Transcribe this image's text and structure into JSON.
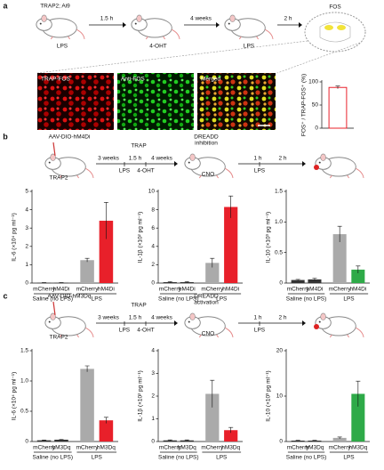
{
  "panel_a": {
    "label": "a",
    "genotype": "TRAP2; Ai9",
    "intervals": [
      "1.5 h",
      "4 weeks",
      "2 h"
    ],
    "treatments": [
      "LPS",
      "4-OHT",
      "LPS"
    ],
    "region": "FOS",
    "images": [
      "TRAP-FOS",
      "Anti-FOS",
      "Merged"
    ]
  },
  "panel_b": {
    "label": "b",
    "virus": "AAV-DIO-hM4Di",
    "mouse": "TRAP2",
    "trap": "TRAP",
    "intervals": [
      "3 weeks",
      "1.5 h",
      "4 weeks"
    ],
    "trap_treatments": [
      "LPS",
      "4-OHT"
    ],
    "dreadd": [
      "DREADD",
      "inhibition"
    ],
    "cno": "CNO",
    "post_intervals": [
      "1 h",
      "2 h"
    ],
    "post_treatment": "LPS"
  },
  "panel_c": {
    "label": "c",
    "virus": "AAV-DIO-hM3Dq",
    "mouse": "TRAP2",
    "trap": "TRAP",
    "intervals": [
      "3 weeks",
      "1.5 h",
      "4 weeks"
    ],
    "trap_treatments": [
      "LPS",
      "4-OHT"
    ],
    "dreadd": [
      "DREADD",
      "activation"
    ],
    "cno": "CNO",
    "post_intervals": [
      "1 h",
      "2 h"
    ],
    "post_treatment": "LPS"
  },
  "chart_data": [
    {
      "type": "bar",
      "ylabel": "FOS⁺ / TRAP-FOS⁺ (%)",
      "values": [
        88
      ],
      "errors": [
        3
      ],
      "colors": [
        "#ffffff"
      ],
      "edge": "#e8202a",
      "ylim": [
        0,
        100
      ],
      "yticks": [
        0,
        50,
        100
      ]
    },
    {
      "type": "bar",
      "ylabel": "IL-6 (×10⁴ pg ml⁻¹)",
      "categories": [
        "mCherry",
        "hM4Di",
        "mCherry",
        "hM4Di"
      ],
      "groups": [
        "Saline (no LPS)",
        "LPS"
      ],
      "values": [
        0.02,
        0.02,
        1.25,
        3.4
      ],
      "errors": [
        0.01,
        0.01,
        0.1,
        1.0
      ],
      "colors": [
        "#333333",
        "#333333",
        "#aaaaaa",
        "#e8202a"
      ],
      "ylim": [
        0,
        5
      ],
      "yticks": [
        0,
        1,
        2,
        3,
        4,
        5
      ]
    },
    {
      "type": "bar",
      "ylabel": "IL-1β (×10² pg ml⁻¹)",
      "categories": [
        "mCherry",
        "hM4Di",
        "mCherry",
        "hM4Di"
      ],
      "groups": [
        "Saline (no LPS)",
        "LPS"
      ],
      "values": [
        0.1,
        0.1,
        2.2,
        8.3
      ],
      "errors": [
        0.05,
        0.05,
        0.5,
        1.2
      ],
      "colors": [
        "#333333",
        "#333333",
        "#aaaaaa",
        "#e8202a"
      ],
      "ylim": [
        0,
        10
      ],
      "yticks": [
        0,
        2,
        4,
        6,
        8,
        10
      ]
    },
    {
      "type": "bar",
      "ylabel": "IL-10 (×10³ pg ml⁻¹)",
      "categories": [
        "mCherry",
        "hM4Di",
        "mCherry",
        "hM4Di"
      ],
      "groups": [
        "Saline (no LPS)",
        "LPS"
      ],
      "values": [
        0.05,
        0.06,
        0.8,
        0.22
      ],
      "errors": [
        0.01,
        0.02,
        0.13,
        0.06
      ],
      "colors": [
        "#333333",
        "#333333",
        "#aaaaaa",
        "#2eaa48"
      ],
      "ylim": [
        0,
        1.5
      ],
      "yticks": [
        0,
        0.5,
        {
          "value": 1,
          "label": "1.0"
        },
        1.5
      ]
    },
    {
      "type": "bar",
      "ylabel": "IL-6 (×10⁴ pg ml⁻¹)",
      "categories": [
        "mCherry",
        "hM3Dq",
        "mCherry",
        "hM3Dq"
      ],
      "groups": [
        "Saline (no LPS)",
        "LPS"
      ],
      "values": [
        0.02,
        0.03,
        1.2,
        0.35
      ],
      "errors": [
        0.005,
        0.005,
        0.05,
        0.05
      ],
      "colors": [
        "#333333",
        "#333333",
        "#aaaaaa",
        "#e8202a"
      ],
      "ylim": [
        0,
        1.5
      ],
      "yticks": [
        0,
        0.5,
        {
          "value": 1,
          "label": "1.0"
        },
        1.5
      ]
    },
    {
      "type": "bar",
      "ylabel": "IL-1β (×10² pg ml⁻¹)",
      "categories": [
        "mCherry",
        "hM3Dq",
        "mCherry",
        "hM3Dq"
      ],
      "groups": [
        "Saline (no LPS)",
        "LPS"
      ],
      "values": [
        0.05,
        0.05,
        2.1,
        0.5
      ],
      "errors": [
        0.02,
        0.02,
        0.6,
        0.12
      ],
      "colors": [
        "#333333",
        "#333333",
        "#aaaaaa",
        "#e8202a"
      ],
      "ylim": [
        0,
        4
      ],
      "yticks": [
        0,
        1,
        2,
        3,
        4
      ]
    },
    {
      "type": "bar",
      "ylabel": "IL-10 (×10³ pg ml⁻¹)",
      "categories": [
        "mCherry",
        "hM3Dq",
        "mCherry",
        "hM3Dq"
      ],
      "groups": [
        "Saline (no LPS)",
        "LPS"
      ],
      "values": [
        0.2,
        0.2,
        0.8,
        10.5
      ],
      "errors": [
        0.05,
        0.05,
        0.2,
        2.8
      ],
      "colors": [
        "#333333",
        "#333333",
        "#aaaaaa",
        "#2eaa48"
      ],
      "ylim": [
        0,
        20
      ],
      "yticks": [
        0,
        10,
        20
      ]
    }
  ]
}
